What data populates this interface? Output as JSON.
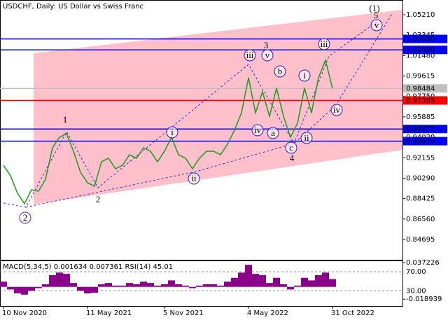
{
  "chart_data": [
    {
      "type": "line",
      "title": "USDCHF, Daily:  US Dollar vs Swiss Franc",
      "color": "#1a9a1a",
      "categories": [
        "10 Nov 2020",
        null,
        null,
        null,
        null,
        null,
        null,
        null,
        null,
        null,
        null,
        null,
        "11 May 2021",
        null,
        null,
        null,
        null,
        null,
        null,
        null,
        null,
        null,
        null,
        "5 Nov 2021",
        null,
        null,
        null,
        null,
        null,
        null,
        null,
        null,
        null,
        null,
        null,
        "4 May 2022",
        null,
        null,
        null,
        null,
        null,
        null,
        null,
        null,
        null,
        null,
        null,
        "31 Oct 2022"
      ],
      "values": [
        0.9147,
        0.9051,
        0.8891,
        0.8795,
        0.8923,
        0.891,
        0.9019,
        0.9307,
        0.9403,
        0.9435,
        0.9275,
        0.9083,
        0.8987,
        0.8955,
        0.9179,
        0.9211,
        0.9115,
        0.9147,
        0.9243,
        0.9211,
        0.9307,
        0.9275,
        0.9179,
        0.9275,
        0.9403,
        0.9243,
        0.9211,
        0.9115,
        0.9211,
        0.9275,
        0.9275,
        0.9243,
        0.9339,
        0.9467,
        0.9626,
        0.9946,
        0.9626,
        0.9818,
        0.9594,
        0.985,
        0.9594,
        0.9403,
        0.953,
        0.985,
        0.9626,
        0.9946,
        1.0106,
        0.98484
      ],
      "ylim": [
        0.8284,
        1.0649
      ],
      "yticks": [
        {
          "value": 1.0521,
          "label": "1.05210"
        },
        {
          "value": 1.03345,
          "label": "1.03345"
        },
        {
          "value": 1.0148,
          "label": "1.01480"
        },
        {
          "value": 0.99615,
          "label": "0.99615"
        },
        {
          "value": 0.9775,
          "label": "0.97750"
        },
        {
          "value": 0.95885,
          "label": "0.95885"
        },
        {
          "value": 0.9402,
          "label": "0.94020"
        },
        {
          "value": 0.92155,
          "label": "0.92155"
        },
        {
          "value": 0.9029,
          "label": "0.90290"
        },
        {
          "value": 0.88425,
          "label": "0.88425"
        },
        {
          "value": 0.8656,
          "label": "0.86560"
        },
        {
          "value": 0.84695,
          "label": "0.84695"
        }
      ],
      "levels": [
        {
          "value": 1.03,
          "label": "1.03000",
          "color": "#0000ff"
        },
        {
          "value": 1.02,
          "label": "1.02000",
          "color": "#0000ff"
        },
        {
          "value": 0.98484,
          "label": "0.98484",
          "color": "#c0c0c0"
        },
        {
          "value": 0.97385,
          "label": "0.97385",
          "color": "#ff0000"
        },
        {
          "value": 0.94777,
          "label": "0.94777",
          "color": "#0000ff"
        },
        {
          "value": 0.9367,
          "label": "0.93670",
          "color": "#0000ff"
        }
      ],
      "annotations": [
        "(1)",
        "5",
        "v",
        "3",
        "iii",
        "v",
        "b",
        "iv",
        "a",
        "c",
        "4",
        "i",
        "ii",
        "iii",
        "iv",
        "1",
        "i",
        "ii",
        "2",
        "2"
      ]
    },
    {
      "type": "bar",
      "title": "MACD(5,34,5) 0.001634 0.007361 RSI(14) 45.01",
      "color": "#8b008b",
      "values": [
        0.008,
        -0.004,
        -0.01,
        -0.012,
        -0.006,
        -0.002,
        0.004,
        0.018,
        0.022,
        0.02,
        0.006,
        -0.006,
        -0.01,
        -0.009,
        0.004,
        0.006,
        0.002,
        0.002,
        0.006,
        0.004,
        0.008,
        0.006,
        0.002,
        0.004,
        0.01,
        0.004,
        0.002,
        -0.002,
        0.002,
        0.004,
        0.004,
        0.002,
        0.008,
        0.014,
        0.022,
        0.034,
        0.02,
        0.018,
        0.006,
        0.014,
        0.004,
        -0.004,
        0.002,
        0.014,
        0.01,
        0.018,
        0.022,
        0.012
      ],
      "ylim": [
        -0.0295,
        0.0396
      ],
      "yticks": [
        0.037226,
        -0.018939
      ],
      "y2lim": [
        -2,
        92.4
      ],
      "y2ticks": [
        {
          "value": 70,
          "label": "70.00"
        },
        {
          "value": 30,
          "label": "30.00"
        }
      ]
    }
  ]
}
